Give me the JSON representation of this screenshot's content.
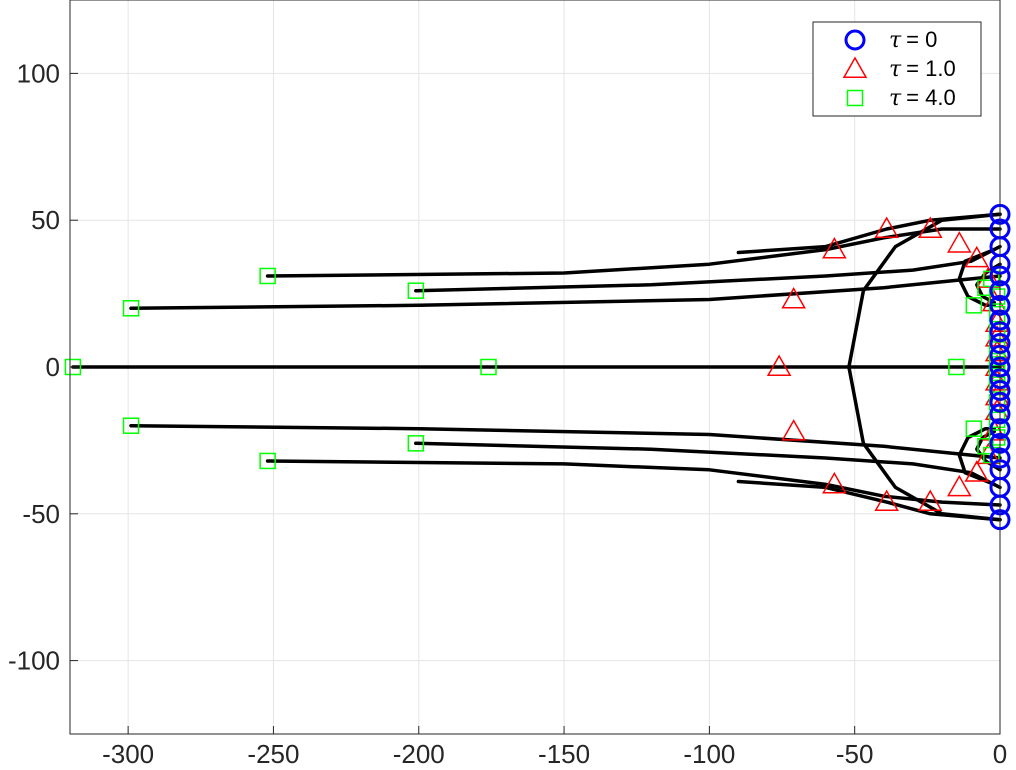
{
  "chart_data": {
    "type": "scatter",
    "title": "",
    "xlabel": "",
    "ylabel": "",
    "xlim": [
      -320,
      0
    ],
    "ylim": [
      -125,
      125
    ],
    "xticks": [
      -300,
      -250,
      -200,
      -150,
      -100,
      -50,
      0
    ],
    "yticks": [
      -100,
      -50,
      0,
      50,
      100
    ],
    "xtick_labels": [
      "-300",
      "-250",
      "-200",
      "-150",
      "-100",
      "-50",
      "0"
    ],
    "ytick_labels": [
      "-100",
      "-50",
      "0",
      "50",
      "100"
    ],
    "grid": true,
    "legend_position": "top-right",
    "series": [
      {
        "name": "τ = 0",
        "legend_symbol": "τ",
        "legend_value": "= 0",
        "marker": "circle",
        "color": "#0000ff",
        "points": [
          [
            0,
            52
          ],
          [
            0,
            47
          ],
          [
            0,
            41
          ],
          [
            0,
            35
          ],
          [
            0,
            31
          ],
          [
            0,
            26
          ],
          [
            0,
            21
          ],
          [
            0,
            16
          ],
          [
            0,
            12
          ],
          [
            0,
            8
          ],
          [
            0,
            4
          ],
          [
            0,
            0
          ],
          [
            0,
            -4
          ],
          [
            0,
            -8
          ],
          [
            0,
            -12
          ],
          [
            0,
            -16
          ],
          [
            0,
            -21
          ],
          [
            0,
            -26
          ],
          [
            0,
            -31
          ],
          [
            0,
            -35
          ],
          [
            0,
            -41
          ],
          [
            0,
            -47
          ],
          [
            0,
            -52
          ]
        ]
      },
      {
        "name": "τ = 1.0",
        "legend_symbol": "τ",
        "legend_value": "= 1.0",
        "marker": "triangle",
        "color": "#ff0000",
        "points": [
          [
            -76,
            0
          ],
          [
            -71,
            23
          ],
          [
            -71,
            -22
          ],
          [
            -57,
            40
          ],
          [
            -57,
            -40
          ],
          [
            -39,
            47
          ],
          [
            -39,
            -46
          ],
          [
            -24,
            47
          ],
          [
            -24,
            -46
          ],
          [
            -14,
            42
          ],
          [
            -14,
            -41
          ],
          [
            -8,
            37
          ],
          [
            -8,
            -36
          ],
          [
            -4,
            30
          ],
          [
            -4,
            -30
          ],
          [
            -2,
            22
          ],
          [
            -2,
            -22
          ],
          [
            -1,
            15
          ],
          [
            -1,
            -15
          ],
          [
            -1,
            10
          ],
          [
            -1,
            -10
          ],
          [
            -1,
            5
          ],
          [
            -1,
            -5
          ],
          [
            -1,
            0
          ]
        ]
      },
      {
        "name": "τ = 4.0",
        "legend_symbol": "τ",
        "legend_value": "= 4.0",
        "marker": "square",
        "color": "#00ff00",
        "points": [
          [
            -319,
            0
          ],
          [
            -299,
            20
          ],
          [
            -299,
            -20
          ],
          [
            -252,
            31
          ],
          [
            -252,
            -32
          ],
          [
            -201,
            26
          ],
          [
            -201,
            -26
          ],
          [
            -176,
            0
          ],
          [
            -15,
            0
          ],
          [
            -9,
            21
          ],
          [
            -9,
            -21
          ],
          [
            -5,
            27
          ],
          [
            -5,
            -27
          ],
          [
            -3,
            30
          ],
          [
            -3,
            -30
          ],
          [
            -1,
            24
          ],
          [
            -1,
            -24
          ],
          [
            -1,
            18
          ],
          [
            -1,
            -18
          ],
          [
            -1,
            12
          ],
          [
            -1,
            -12
          ],
          [
            -1,
            6
          ],
          [
            -1,
            -6
          ],
          [
            -1,
            2
          ],
          [
            -1,
            -2
          ]
        ]
      }
    ],
    "trajectories": [
      {
        "color": "#000000",
        "points": [
          [
            -319,
            0
          ],
          [
            0,
            0
          ]
        ]
      },
      {
        "color": "#000000",
        "points": [
          [
            -299,
            20
          ],
          [
            -200,
            21
          ],
          [
            -100,
            23
          ],
          [
            -40,
            27
          ],
          [
            -10,
            30
          ],
          [
            0,
            31
          ]
        ]
      },
      {
        "color": "#000000",
        "points": [
          [
            -299,
            -20
          ],
          [
            -200,
            -21
          ],
          [
            -100,
            -23
          ],
          [
            -40,
            -27
          ],
          [
            -10,
            -30
          ],
          [
            0,
            -31
          ]
        ]
      },
      {
        "color": "#000000",
        "points": [
          [
            -252,
            31
          ],
          [
            -150,
            32
          ],
          [
            -100,
            35
          ],
          [
            -60,
            40
          ],
          [
            -40,
            44
          ],
          [
            -20,
            47
          ],
          [
            0,
            47
          ]
        ]
      },
      {
        "color": "#000000",
        "points": [
          [
            -252,
            -32
          ],
          [
            -150,
            -33
          ],
          [
            -100,
            -35
          ],
          [
            -60,
            -40
          ],
          [
            -40,
            -44
          ],
          [
            -20,
            -46
          ],
          [
            0,
            -47
          ]
        ]
      },
      {
        "color": "#000000",
        "points": [
          [
            -201,
            26
          ],
          [
            -120,
            28
          ],
          [
            -60,
            31
          ],
          [
            -30,
            33
          ],
          [
            -10,
            36
          ],
          [
            0,
            41
          ]
        ]
      },
      {
        "color": "#000000",
        "points": [
          [
            -201,
            -26
          ],
          [
            -120,
            -28
          ],
          [
            -60,
            -31
          ],
          [
            -30,
            -33
          ],
          [
            -10,
            -36
          ],
          [
            0,
            -41
          ]
        ]
      },
      {
        "color": "#000000",
        "points": [
          [
            -90,
            39
          ],
          [
            -60,
            41
          ],
          [
            -39,
            47
          ],
          [
            -24,
            50
          ],
          [
            0,
            52
          ]
        ]
      },
      {
        "color": "#000000",
        "points": [
          [
            -90,
            -39
          ],
          [
            -60,
            -41
          ],
          [
            -39,
            -46
          ],
          [
            -24,
            -50
          ],
          [
            0,
            -52
          ]
        ]
      },
      {
        "color": "#000000",
        "points": [
          [
            0,
            52
          ],
          [
            -20,
            50
          ],
          [
            -36,
            41
          ],
          [
            -47,
            26
          ],
          [
            -52,
            0
          ],
          [
            -47,
            -26
          ],
          [
            -36,
            -41
          ],
          [
            -20,
            -50
          ],
          [
            0,
            -52
          ]
        ]
      },
      {
        "color": "#000000",
        "points": [
          [
            -2,
            40
          ],
          [
            -12,
            36
          ],
          [
            -14,
            30
          ],
          [
            -11,
            24
          ],
          [
            -5,
            21
          ],
          [
            -2,
            21
          ]
        ]
      },
      {
        "color": "#000000",
        "points": [
          [
            -2,
            -40
          ],
          [
            -12,
            -36
          ],
          [
            -14,
            -30
          ],
          [
            -11,
            -24
          ],
          [
            -5,
            -21
          ],
          [
            -2,
            -21
          ]
        ]
      },
      {
        "color": "#000000",
        "points": [
          [
            0,
            35
          ],
          [
            -5,
            32
          ],
          [
            -8,
            28
          ],
          [
            -6,
            24
          ],
          [
            -2,
            22
          ]
        ]
      },
      {
        "color": "#000000",
        "points": [
          [
            0,
            -35
          ],
          [
            -5,
            -32
          ],
          [
            -8,
            -28
          ],
          [
            -6,
            -24
          ],
          [
            -2,
            -22
          ]
        ]
      }
    ]
  }
}
